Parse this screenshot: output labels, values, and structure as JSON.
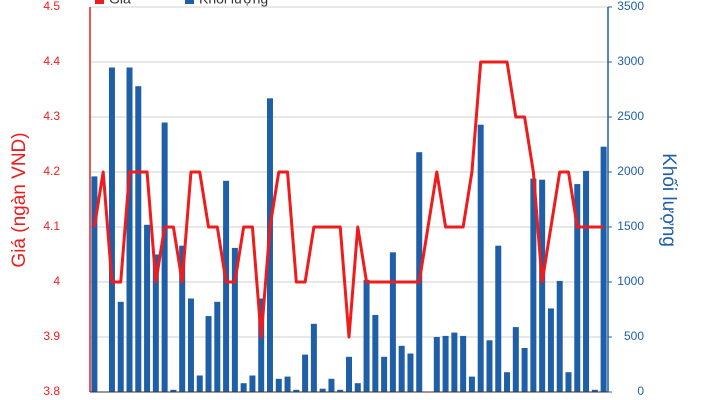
{
  "chart_data": {
    "type": "bar-line",
    "categories": [
      null,
      null,
      null,
      null,
      null,
      null,
      null,
      null,
      null,
      null,
      null,
      null,
      null,
      null,
      null,
      null,
      null,
      null,
      null,
      null,
      null,
      null,
      null,
      null,
      null,
      null,
      null,
      null,
      null,
      null,
      null,
      null,
      null,
      null,
      null,
      null,
      null,
      null,
      null,
      null,
      null,
      null,
      null,
      null,
      null,
      null,
      null,
      null,
      null,
      null,
      null,
      null,
      null,
      null,
      null,
      null,
      null,
      null,
      null
    ],
    "y_label": "Giá (ngàn VND)",
    "y2_label": "Khối lượng",
    "ylim": [
      3.8,
      4.5
    ],
    "yticks": [
      3.8,
      3.9,
      4,
      4.1,
      4.2,
      4.3,
      4.4,
      4.5
    ],
    "y2lim": [
      0,
      3500
    ],
    "y2ticks": [
      0,
      500,
      1000,
      1500,
      2000,
      2500,
      3000,
      3500
    ],
    "grid": true,
    "series": [
      {
        "name": "Giá",
        "type": "line",
        "color": "#ee1c1c",
        "values": [
          4.1,
          4.2,
          4.0,
          4.0,
          4.2,
          4.2,
          4.2,
          4.0,
          4.1,
          4.1,
          4.0,
          4.2,
          4.2,
          4.1,
          4.1,
          4.0,
          4.0,
          4.1,
          4.1,
          3.9,
          4.1,
          4.2,
          4.2,
          4.0,
          4.0,
          4.1,
          4.1,
          4.1,
          4.1,
          3.9,
          4.1,
          4.0,
          4.0,
          4.0,
          4.0,
          4.0,
          4.0,
          4.0,
          4.1,
          4.2,
          4.1,
          4.1,
          4.1,
          4.2,
          4.4,
          4.4,
          4.4,
          4.4,
          4.3,
          4.3,
          4.2,
          4.0,
          4.1,
          4.2,
          4.2,
          4.1,
          4.1,
          4.1,
          4.1
        ]
      },
      {
        "name": "Khối lượng",
        "type": "bar",
        "axis": "y2",
        "color": "#1f5fa8",
        "values": [
          1960,
          0,
          2950,
          820,
          2950,
          2780,
          1520,
          1250,
          2450,
          20,
          1330,
          850,
          150,
          690,
          820,
          1920,
          1310,
          80,
          150,
          850,
          2670,
          120,
          140,
          20,
          340,
          620,
          30,
          120,
          20,
          320,
          80,
          1020,
          700,
          320,
          1270,
          420,
          350,
          2180,
          0,
          500,
          510,
          540,
          510,
          140,
          2430,
          470,
          1330,
          180,
          590,
          400,
          1940,
          1930,
          760,
          1010,
          180,
          1890,
          2010,
          20,
          2230
        ]
      }
    ]
  }
}
